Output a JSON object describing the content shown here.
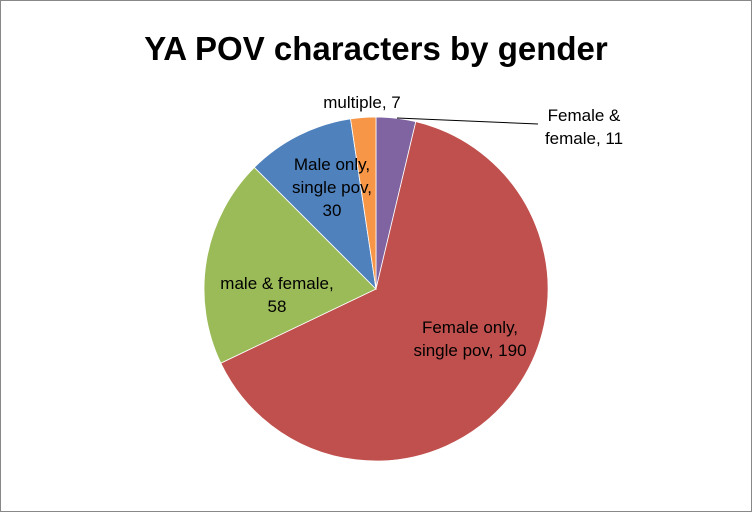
{
  "chart_data": {
    "type": "pie",
    "title": "YA POV characters by gender",
    "slices": [
      {
        "label": "Female & female",
        "value": 11,
        "color": "#8064A2",
        "text_lines": [
          "Female &",
          "female, 11"
        ]
      },
      {
        "label": "Female only, single pov",
        "value": 190,
        "color": "#C0504D",
        "text_lines": [
          "Female only,",
          "single pov, 190"
        ]
      },
      {
        "label": "male & female",
        "value": 58,
        "color": "#9BBB59",
        "text_lines": [
          "male & female,",
          "58"
        ]
      },
      {
        "label": "Male only, single pov",
        "value": 30,
        "color": "#4F81BD",
        "text_lines": [
          "Male only,",
          "single pov,",
          "30"
        ]
      },
      {
        "label": "multiple",
        "value": 7,
        "color": "#F79646",
        "text_lines": [
          "multiple, 7"
        ]
      }
    ],
    "start_angle": "top",
    "direction": "clockwise",
    "legend": "none"
  }
}
